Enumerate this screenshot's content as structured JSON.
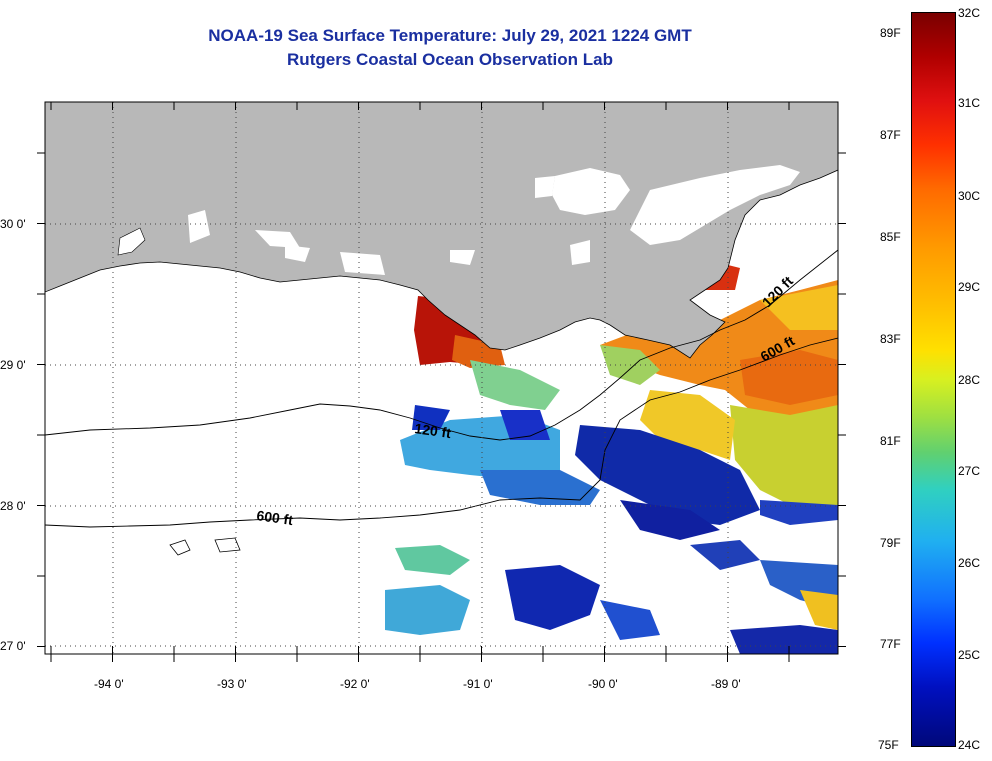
{
  "header": {
    "title": "NOAA-19 Sea Surface Temperature:  July 29, 2021 1224 GMT",
    "subtitle": "Rutgers Coastal Ocean Observation Lab"
  },
  "axes": {
    "lon_labels": [
      "-94 0'",
      "-93 0'",
      "-92 0'",
      "-91 0'",
      "-90 0'",
      "-89 0'"
    ],
    "lat_labels": [
      "30 0'",
      "29 0'",
      "28 0'",
      "27 0'"
    ]
  },
  "contours": {
    "c120_label": "120 ft",
    "c600_label": "600 ft"
  },
  "colorbar": {
    "fahrenheit": [
      "89F",
      "87F",
      "85F",
      "83F",
      "81F",
      "79F",
      "77F",
      "75F"
    ],
    "celsius": [
      "32C",
      "31C",
      "30C",
      "29C",
      "28C",
      "27C",
      "26C",
      "25C",
      "24C"
    ]
  },
  "colors": {
    "land": "#b8b8b8",
    "title": "#1a2fa0",
    "ocean_nodata": "#ffffff"
  }
}
